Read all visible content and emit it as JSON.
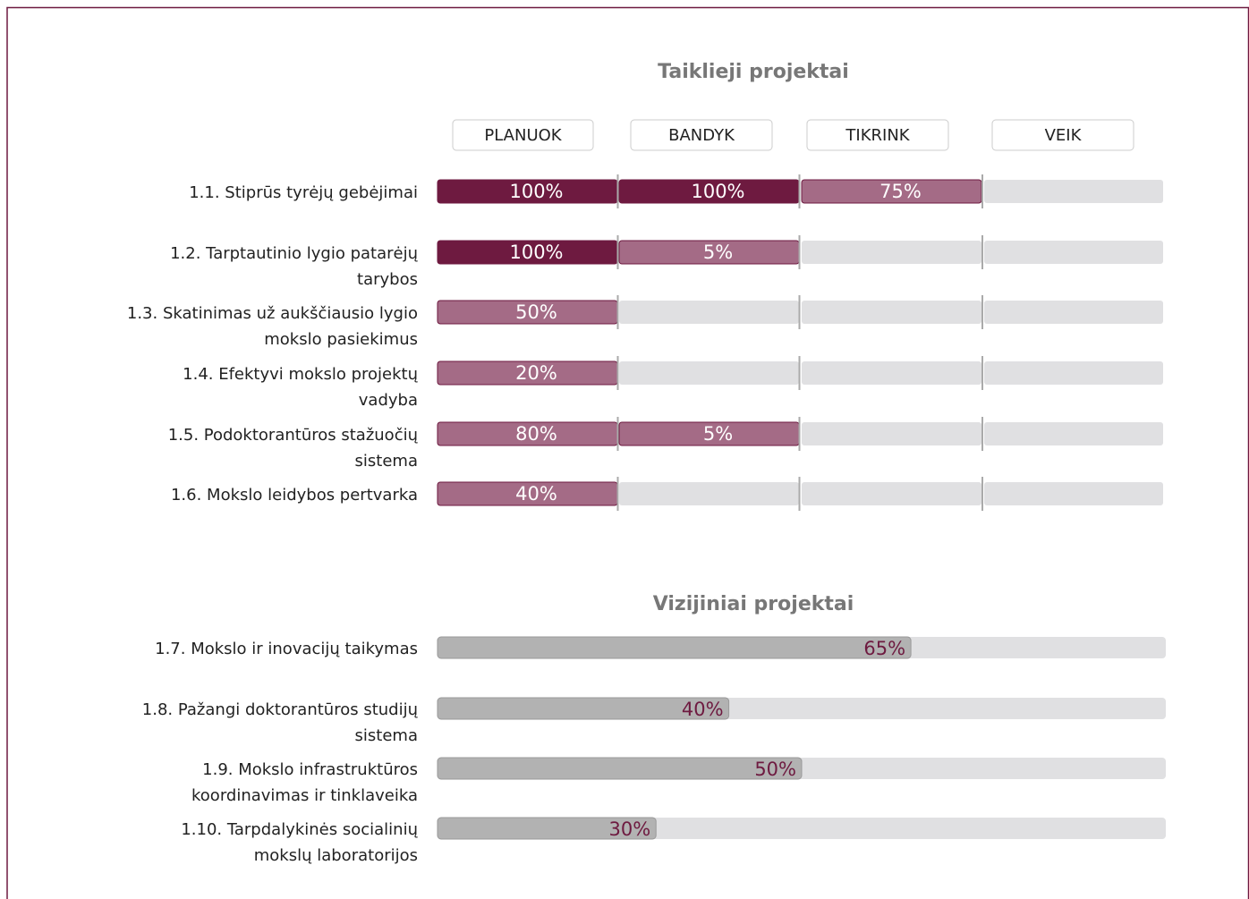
{
  "colors": {
    "complete": "#6e1a40",
    "partial": "#a46b86",
    "track": "#e0e0e2",
    "vision": "#b2b2b2",
    "vision_label": "#6e1a40"
  },
  "sections": [
    {
      "title": "Taiklieji projektai",
      "stages": [
        "PLANUOK",
        "BANDYK",
        "TIKRINK",
        "VEIK"
      ],
      "rows": [
        {
          "label": [
            "1.1. Stiprūs tyrėjų gebėjimai"
          ],
          "values": [
            100,
            100,
            75
          ],
          "value_labels": [
            "100%",
            "100%",
            "75%"
          ]
        },
        {
          "label": [
            "1.2. Tarptautinio lygio patarėjų",
            "tarybos"
          ],
          "values": [
            100,
            5
          ],
          "value_labels": [
            "100%",
            "5%"
          ]
        },
        {
          "label": [
            "1.3. Skatinimas už aukščiausio lygio",
            "mokslo pasiekimus"
          ],
          "values": [
            50
          ],
          "value_labels": [
            "50%"
          ]
        },
        {
          "label": [
            "1.4. Efektyvi mokslo projektų",
            "vadyba"
          ],
          "values": [
            20
          ],
          "value_labels": [
            "20%"
          ]
        },
        {
          "label": [
            "1.5. Podoktorantūros stažuočių",
            "sistema"
          ],
          "values": [
            80,
            5
          ],
          "value_labels": [
            "80%",
            "5%"
          ]
        },
        {
          "label": [
            "1.6. Mokslo leidybos pertvarka"
          ],
          "values": [
            40
          ],
          "value_labels": [
            "40%"
          ]
        }
      ]
    },
    {
      "title": "Vizijiniai projektai",
      "rows": [
        {
          "label": [
            "1.7. Mokslo ir inovacijų taikymas"
          ],
          "value": 65,
          "value_label": "65%"
        },
        {
          "label": [
            "1.8. Pažangi doktorantūros studijų",
            "sistema"
          ],
          "value": 40,
          "value_label": "40%"
        },
        {
          "label": [
            "1.9. Mokslo infrastruktūros",
            "koordinavimas ir tinklaveika"
          ],
          "value": 50,
          "value_label": "50%"
        },
        {
          "label": [
            "1.10. Tarpdalykinės socialinių",
            "mokslų laboratorijos"
          ],
          "value": 30,
          "value_label": "30%"
        }
      ]
    }
  ]
}
